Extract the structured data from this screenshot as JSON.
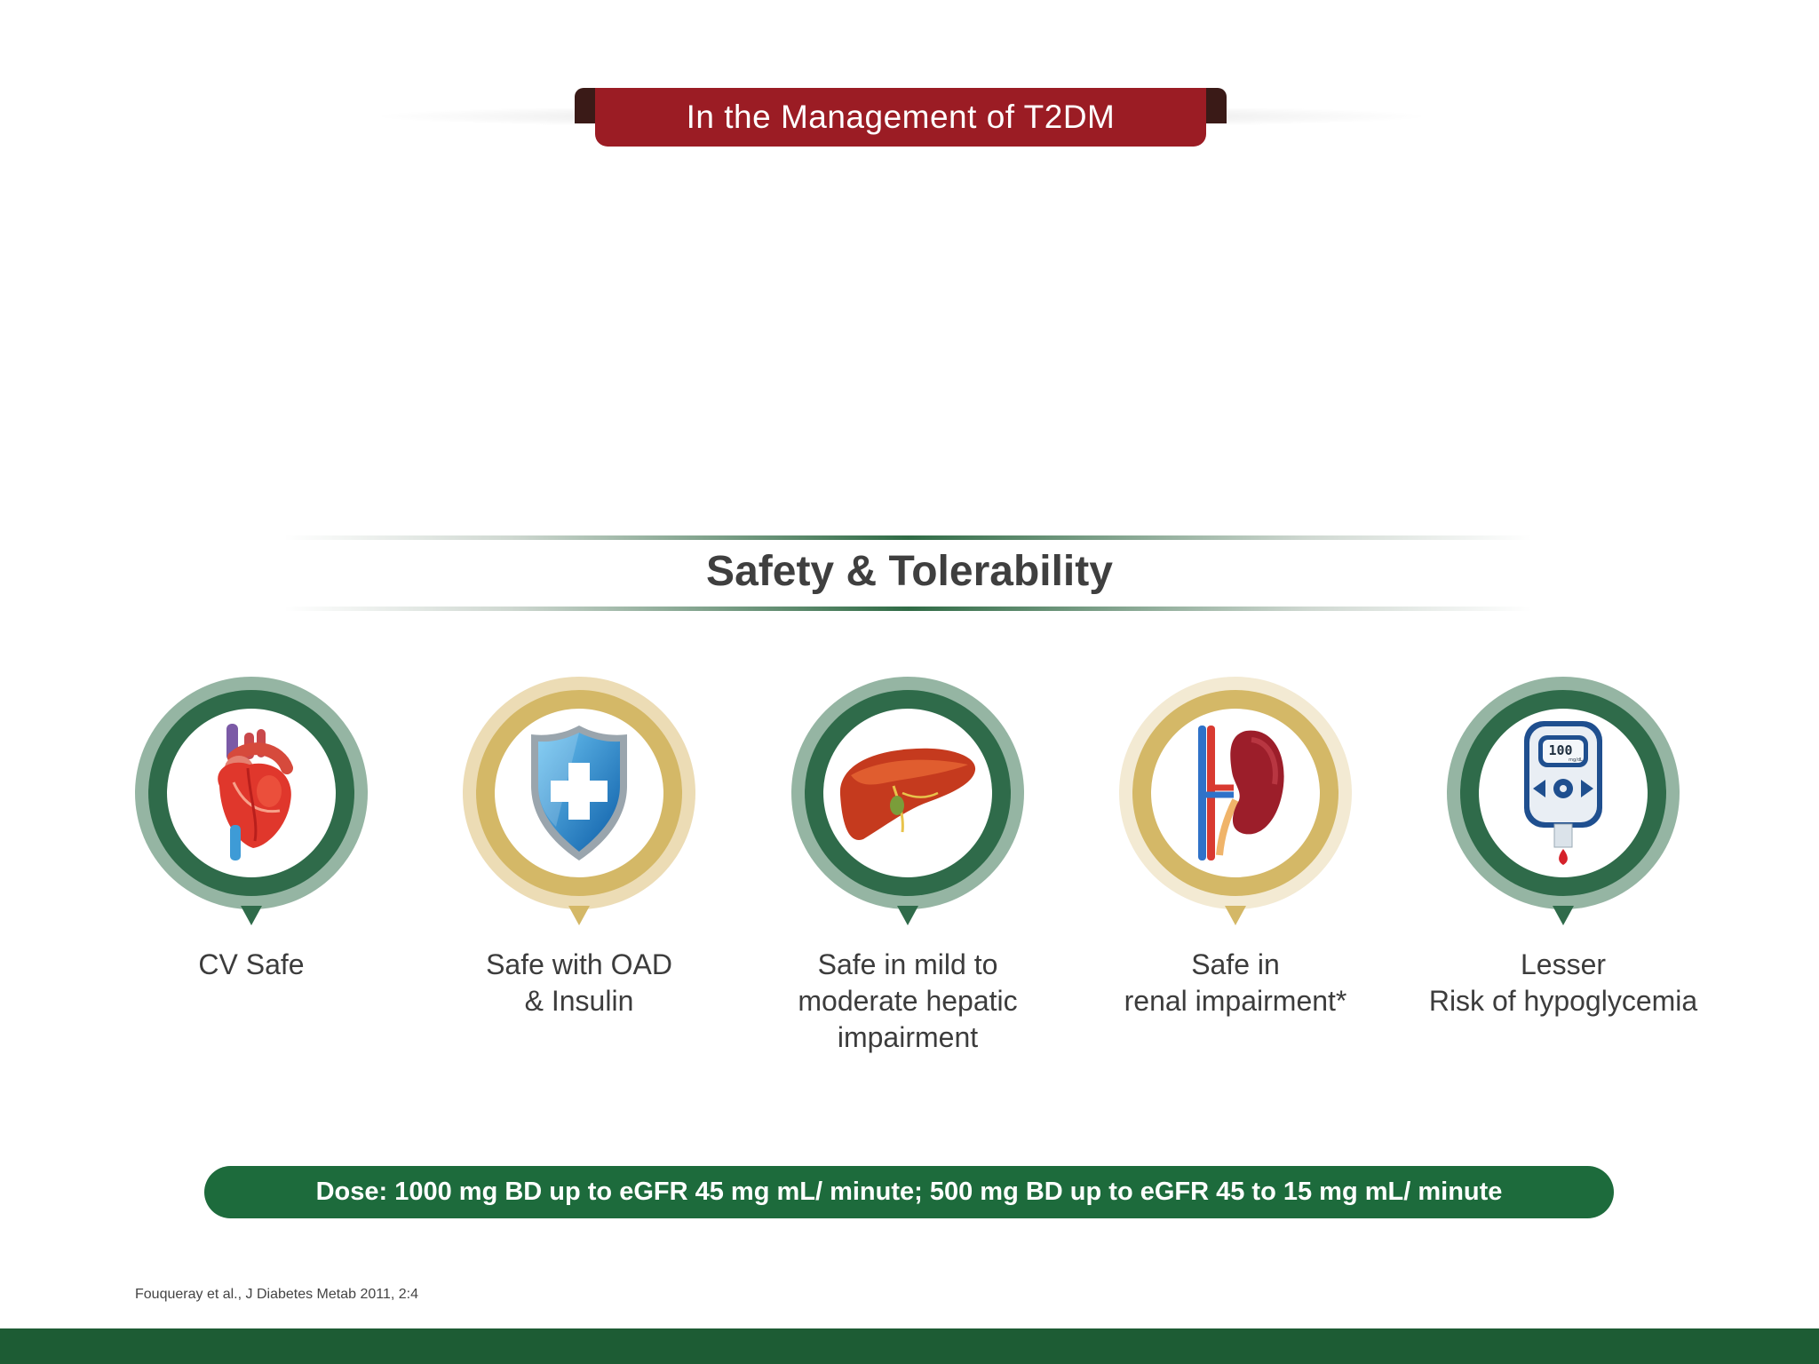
{
  "banner": {
    "title": "In the Management of T2DM"
  },
  "section": {
    "title": "Safety & Tolerability"
  },
  "features": [
    {
      "icon": "heart-icon",
      "lines": [
        "CV Safe"
      ]
    },
    {
      "icon": "shield-plus-icon",
      "lines": [
        "Safe with OAD",
        "& Insulin"
      ]
    },
    {
      "icon": "liver-icon",
      "lines": [
        "Safe in mild to",
        "moderate hepatic",
        "impairment"
      ]
    },
    {
      "icon": "kidney-icon",
      "lines": [
        "Safe in",
        "renal impairment*"
      ]
    },
    {
      "icon": "glucometer-icon",
      "lines": [
        "Lesser",
        "Risk of hypoglycemia"
      ],
      "glucometer_reading": "100",
      "glucometer_unit": "mg/dL"
    }
  ],
  "dose": {
    "text": "Dose: 1000 mg BD up to eGFR 45 mg mL/ minute; 500 mg BD up to eGFR 45 to 15 mg mL/ minute"
  },
  "footer": {
    "reference": "Fouqueray et al., J Diabetes Metab 2011, 2:4"
  },
  "colors": {
    "banner_red": "#9b1c24",
    "brand_green": "#1d6b3c",
    "ring_green": "#2f6b4a",
    "ring_gold": "#d4b867",
    "footer_green": "#1d5c34"
  }
}
